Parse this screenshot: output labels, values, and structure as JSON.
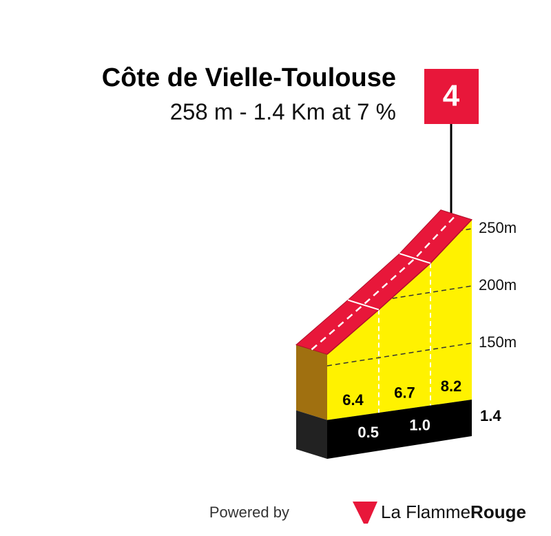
{
  "chart_data": {
    "type": "profile",
    "title": "Côte de Vielle-Toulouse",
    "subtitle": "258 m - 1.4 Km at 7 %",
    "category": "4",
    "x": [
      0,
      0.5,
      1,
      1.4
    ],
    "x_labels": [
      null,
      "0.5",
      "1.0",
      "1.4"
    ],
    "elevation": [
      160,
      192,
      225.5,
      258
    ],
    "gradients": [
      "6.4",
      "6.7",
      "8.2"
    ],
    "ylim": [
      150,
      250
    ],
    "yticks": [
      {
        "value": 150,
        "label": "150m"
      },
      {
        "value": 200,
        "label": "200m"
      },
      {
        "value": 250,
        "label": "250m"
      }
    ],
    "road_color": "#e8173a",
    "face_color": "#fff200",
    "side_color": "#a07010",
    "base_color": "#000000"
  },
  "footer": {
    "powered": "Powered by",
    "brand": "La Flamme",
    "brand_bold": "Rouge"
  }
}
